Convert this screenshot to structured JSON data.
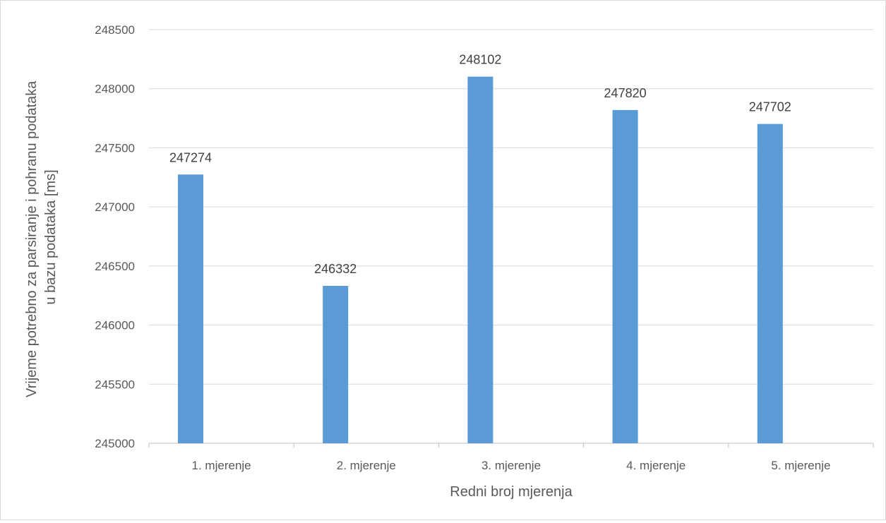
{
  "chart_data": {
    "type": "bar",
    "categories": [
      "1. mjerenje",
      "2. mjerenje",
      "3. mjerenje",
      "4. mjerenje",
      "5. mjerenje"
    ],
    "values": [
      247274,
      246332,
      248102,
      247820,
      247702
    ],
    "data_labels": [
      "247274",
      "246332",
      "248102",
      "247820",
      "247702"
    ],
    "xlabel": "Redni broj mjerenja",
    "ylabel_lines": [
      "Vrijeme potrebno za parsiranje i pohranu podataka",
      "u bazu podataka [ms]"
    ],
    "ylim": [
      245000,
      248500
    ],
    "yticks": [
      "245000",
      "245500",
      "246000",
      "246500",
      "247000",
      "247500",
      "248000",
      "248500"
    ],
    "grid": true,
    "legend": "none",
    "bar_color": "#5b9bd5",
    "grid_color": "#d9d9d9"
  }
}
